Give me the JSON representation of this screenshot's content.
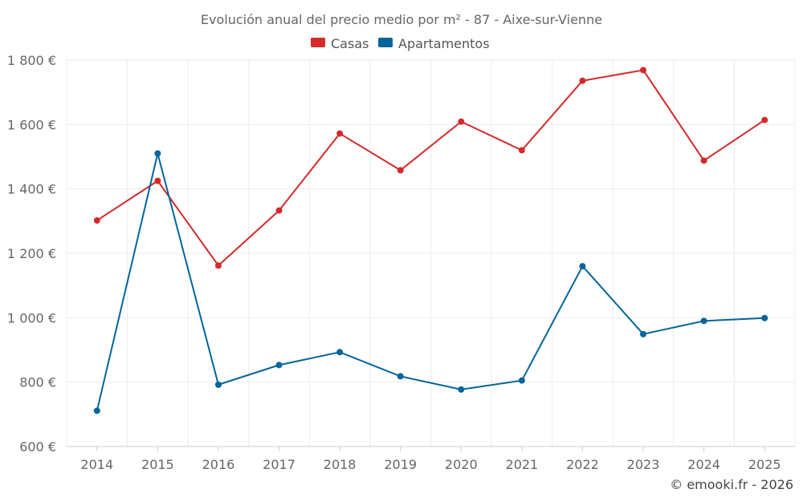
{
  "chart_data": {
    "type": "line",
    "title": "Evolución anual del precio medio por m² - 87 - Aixe-sur-Vienne",
    "categories": [
      "2014",
      "2015",
      "2016",
      "2017",
      "2018",
      "2019",
      "2020",
      "2021",
      "2022",
      "2023",
      "2024",
      "2025"
    ],
    "series": [
      {
        "name": "Casas",
        "color": "#d42a2a",
        "values": [
          1302,
          1425,
          1162,
          1333,
          1572,
          1458,
          1609,
          1520,
          1736,
          1769,
          1488,
          1614
        ]
      },
      {
        "name": "Apartamentos",
        "color": "#04659a",
        "values": [
          711,
          1510,
          792,
          853,
          893,
          818,
          777,
          805,
          1160,
          949,
          990,
          999
        ]
      }
    ],
    "ylim": [
      600,
      1800
    ],
    "yticks": [
      600,
      800,
      1000,
      1200,
      1400,
      1600,
      1800
    ],
    "ytick_labels": [
      "600 €",
      "800 €",
      "1 000 €",
      "1 200 €",
      "1 400 €",
      "1 600 €",
      "1 800 €"
    ],
    "xlabel": "",
    "ylabel": "",
    "grid": true,
    "legend_position": "top-center"
  },
  "credit": "© emooki.fr - 2026"
}
